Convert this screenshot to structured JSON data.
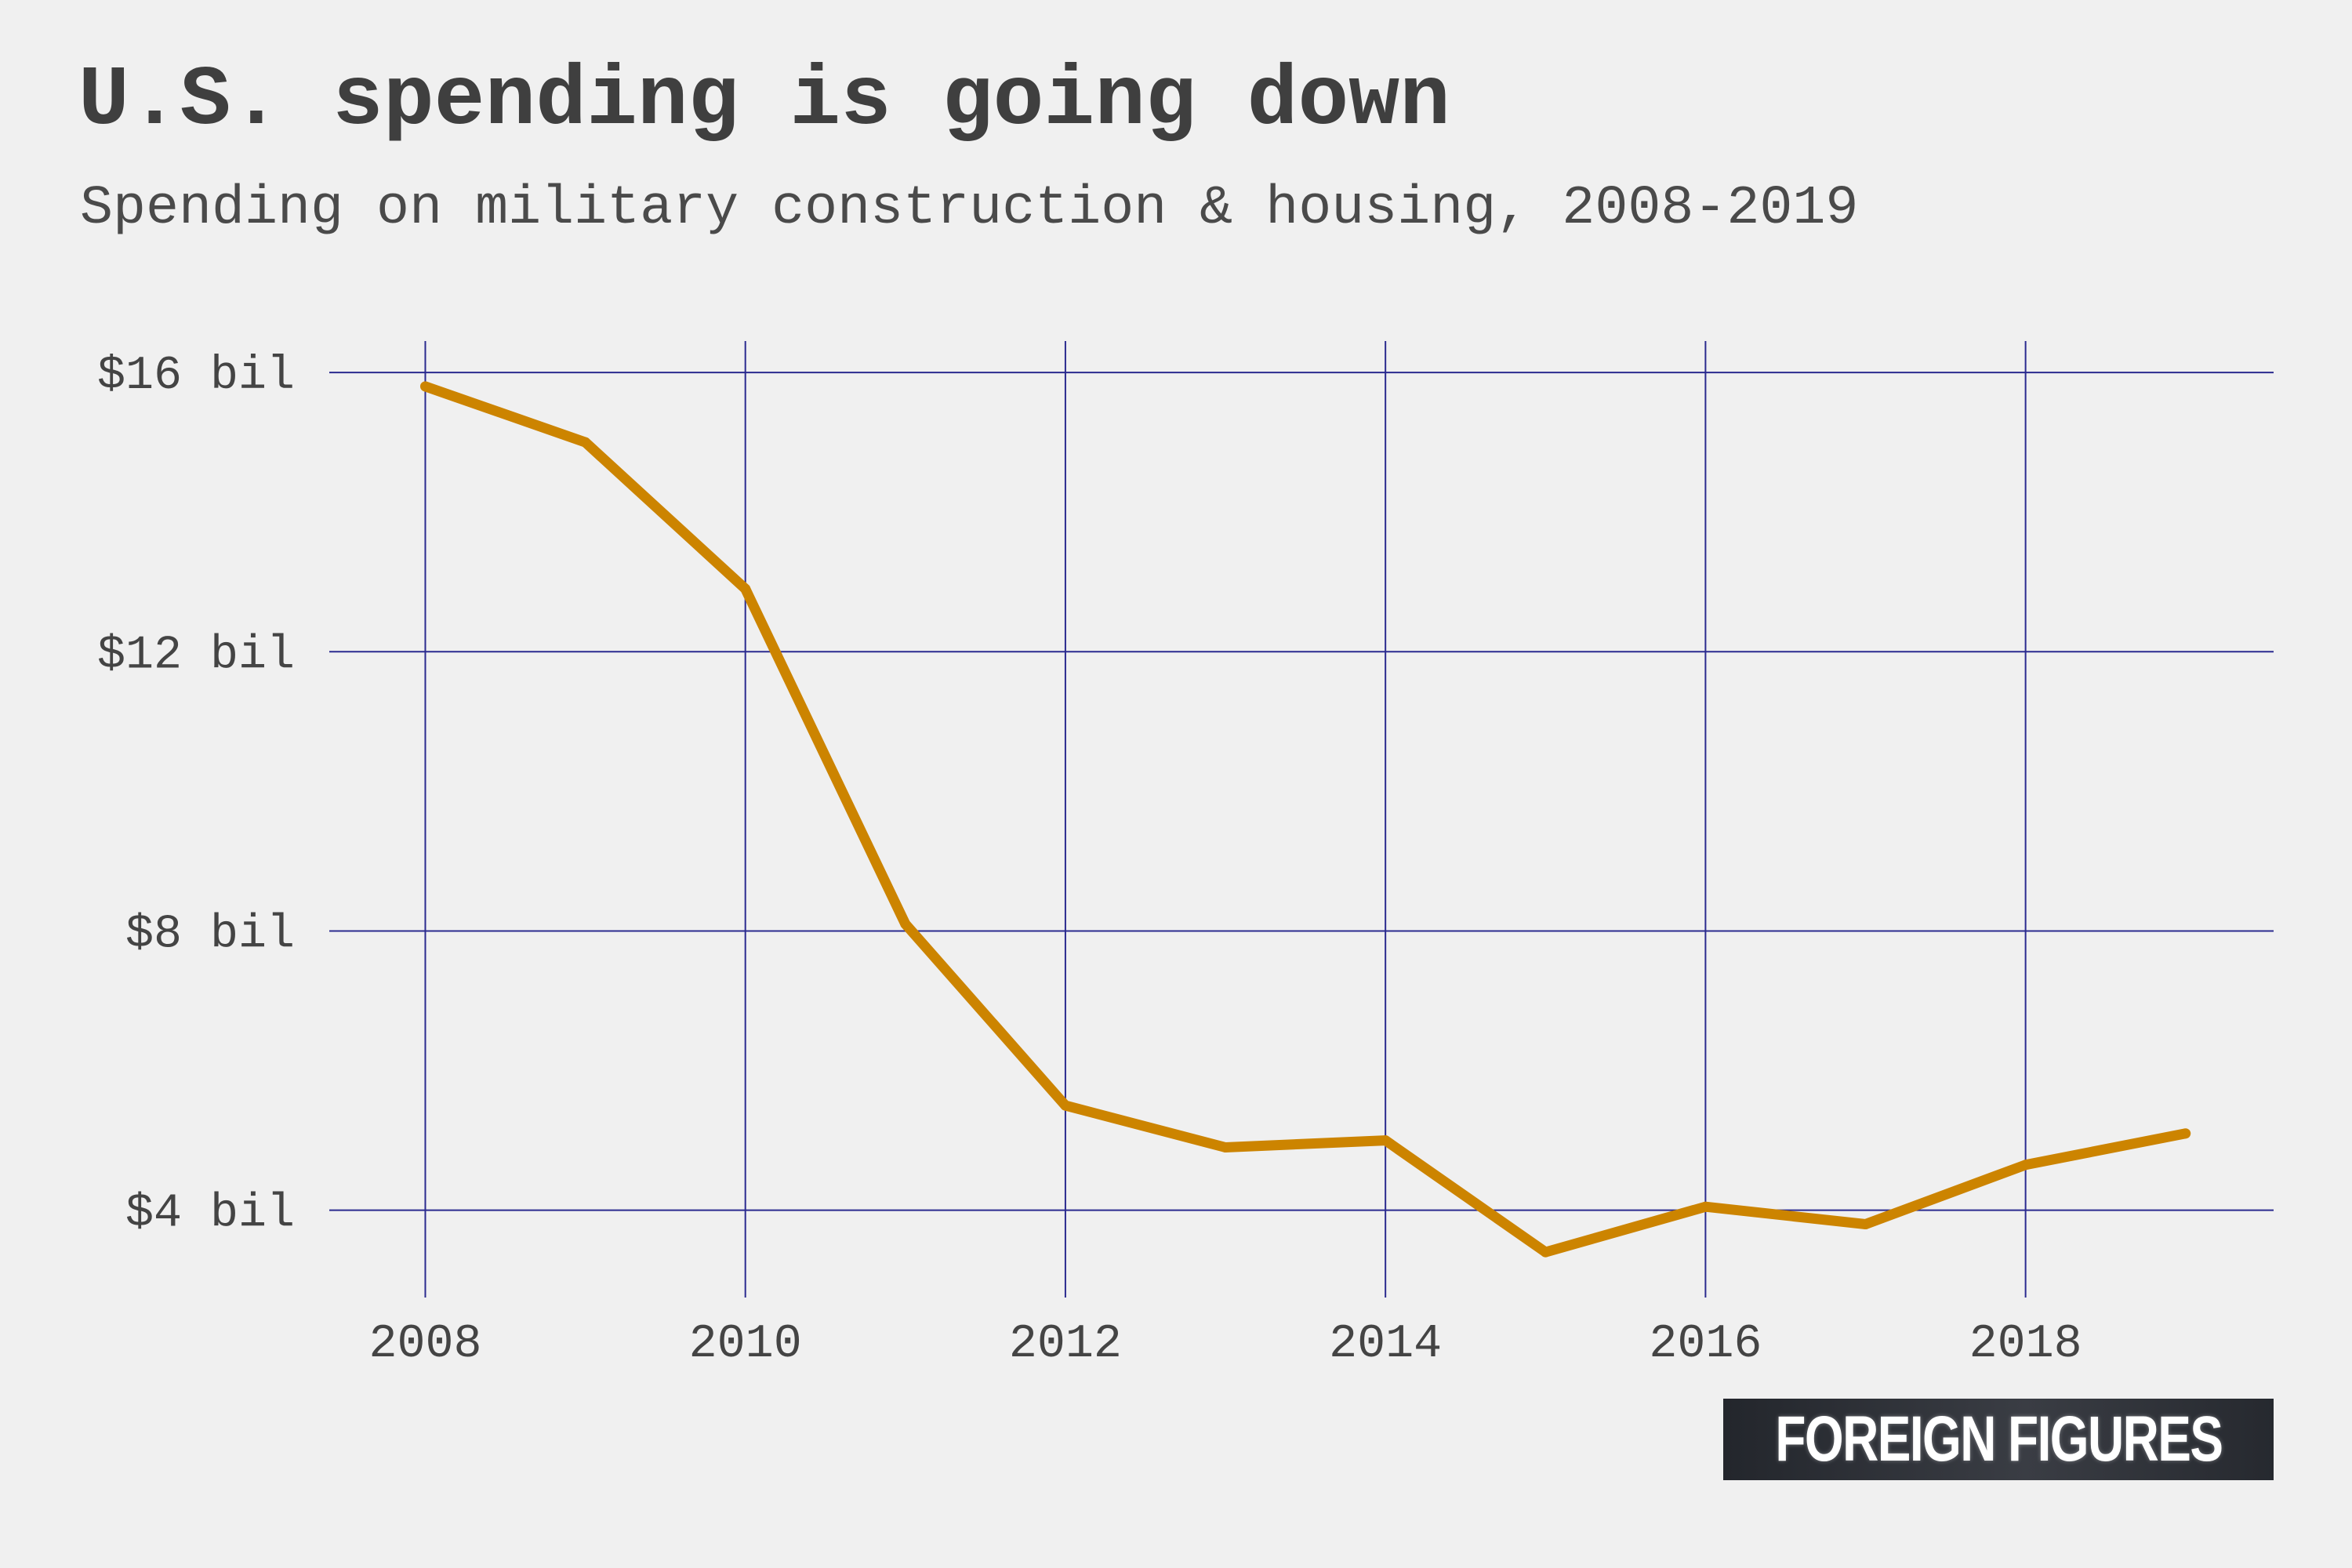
{
  "header": {
    "title": "U.S. spending is going down",
    "subtitle": "Spending on military construction & housing, 2008-2019"
  },
  "logo": {
    "text": "FOREIGN FIGURES"
  },
  "colors": {
    "background": "#f0f0f0",
    "line": "#cc8400",
    "grid": "#2b2b8f",
    "text": "#444444"
  },
  "chart_data": {
    "type": "line",
    "title": "U.S. spending is going down",
    "subtitle": "Spending on military construction & housing, 2008-2019",
    "xlabel": "",
    "ylabel": "",
    "x": [
      2008,
      2009,
      2010,
      2011,
      2012,
      2013,
      2014,
      2015,
      2016,
      2017,
      2018,
      2019
    ],
    "series": [
      {
        "values": [
          15.8,
          15.0,
          12.9,
          8.1,
          5.5,
          4.9,
          5.0,
          3.4,
          4.05,
          3.8,
          4.65,
          5.1
        ]
      }
    ],
    "xticks": [
      2008,
      2010,
      2012,
      2014,
      2016,
      2018
    ],
    "xtick_labels": [
      "2008",
      "2010",
      "2012",
      "2014",
      "2016",
      "2018"
    ],
    "yticks": [
      4,
      8,
      12,
      16
    ],
    "ytick_labels": [
      "$4 bil",
      "$8 bil",
      "$12 bil",
      "$16 bil"
    ],
    "xlim": [
      2007.4,
      2019.55
    ],
    "ylim": [
      2.75,
      16.45
    ],
    "grid": true,
    "legend": "none"
  }
}
